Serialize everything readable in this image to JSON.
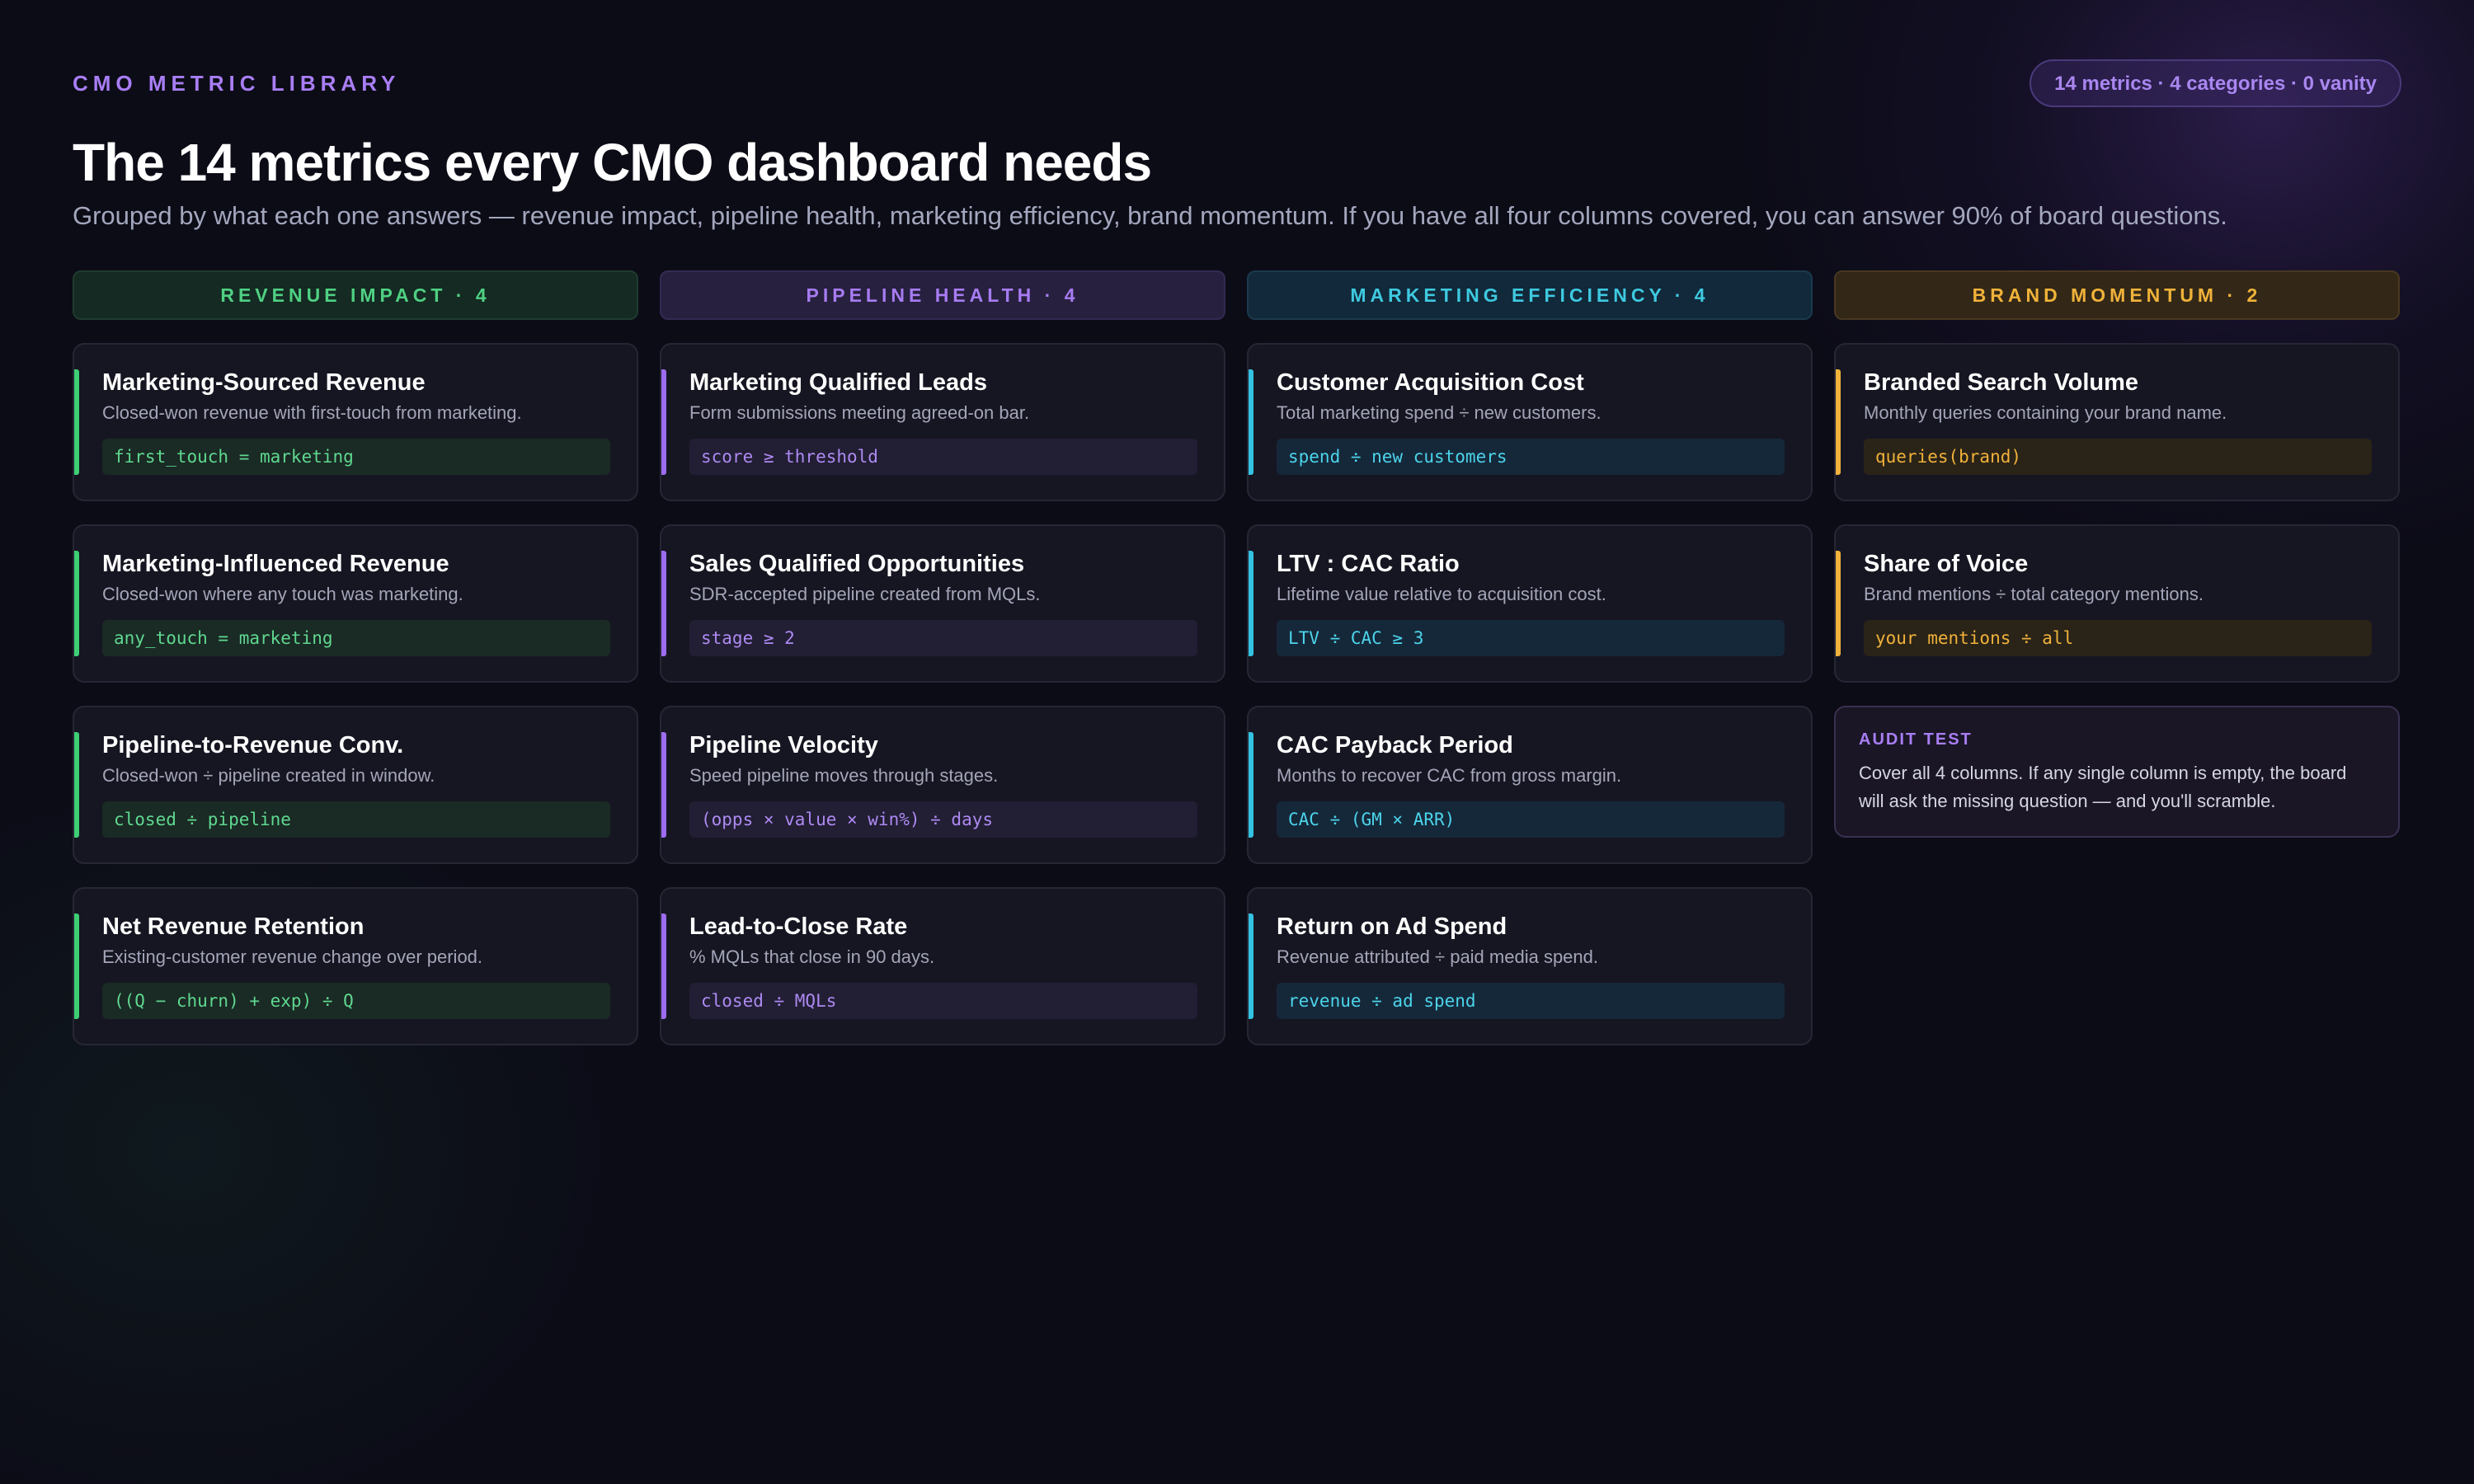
{
  "header": {
    "eyebrow": "CMO METRIC LIBRARY",
    "badge": "14 metrics · 4 categories · 0 vanity",
    "title": "The 14 metrics every CMO dashboard needs",
    "subtitle": "Grouped by what each one answers — revenue impact, pipeline health, marketing efficiency, brand momentum. If you have all four columns covered, you can answer 90% of board questions."
  },
  "colors": {
    "background": "#0c0c17",
    "revenue": "#3ecf74",
    "pipeline": "#9d6cf0",
    "efficiency": "#34c2e2",
    "brand": "#f0b23a"
  },
  "columns": [
    {
      "header": "REVENUE IMPACT · 4",
      "metrics": [
        {
          "title": "Marketing-Sourced Revenue",
          "desc": "Closed-won revenue with first-touch from marketing.",
          "formula": "first_touch = marketing"
        },
        {
          "title": "Marketing-Influenced Revenue",
          "desc": "Closed-won where any touch was marketing.",
          "formula": "any_touch = marketing"
        },
        {
          "title": "Pipeline-to-Revenue Conv.",
          "desc": "Closed-won ÷ pipeline created in window.",
          "formula": "closed ÷ pipeline"
        },
        {
          "title": "Net Revenue Retention",
          "desc": "Existing-customer revenue change over period.",
          "formula": "((Q − churn) + exp) ÷ Q"
        }
      ]
    },
    {
      "header": "PIPELINE HEALTH · 4",
      "metrics": [
        {
          "title": "Marketing Qualified Leads",
          "desc": "Form submissions meeting agreed-on bar.",
          "formula": "score ≥ threshold"
        },
        {
          "title": "Sales Qualified Opportunities",
          "desc": "SDR-accepted pipeline created from MQLs.",
          "formula": "stage ≥ 2"
        },
        {
          "title": "Pipeline Velocity",
          "desc": "Speed pipeline moves through stages.",
          "formula": "(opps × value × win%) ÷ days"
        },
        {
          "title": "Lead-to-Close Rate",
          "desc": "% MQLs that close in 90 days.",
          "formula": "closed ÷ MQLs"
        }
      ]
    },
    {
      "header": "MARKETING EFFICIENCY · 4",
      "metrics": [
        {
          "title": "Customer Acquisition Cost",
          "desc": "Total marketing spend ÷ new customers.",
          "formula": "spend ÷ new customers"
        },
        {
          "title": "LTV : CAC Ratio",
          "desc": "Lifetime value relative to acquisition cost.",
          "formula": "LTV ÷ CAC ≥ 3"
        },
        {
          "title": "CAC Payback Period",
          "desc": "Months to recover CAC from gross margin.",
          "formula": "CAC ÷ (GM × ARR)"
        },
        {
          "title": "Return on Ad Spend",
          "desc": "Revenue attributed ÷ paid media spend.",
          "formula": "revenue ÷ ad spend"
        }
      ]
    },
    {
      "header": "BRAND MOMENTUM · 2",
      "metrics": [
        {
          "title": "Branded Search Volume",
          "desc": "Monthly queries containing your brand name.",
          "formula": "queries(brand)"
        },
        {
          "title": "Share of Voice",
          "desc": "Brand mentions ÷ total category mentions.",
          "formula": "your mentions ÷ all"
        }
      ],
      "audit": {
        "label": "AUDIT TEST",
        "text": "Cover all 4 columns. If any single column is empty, the board will ask the missing question — and you'll scramble."
      }
    }
  ]
}
